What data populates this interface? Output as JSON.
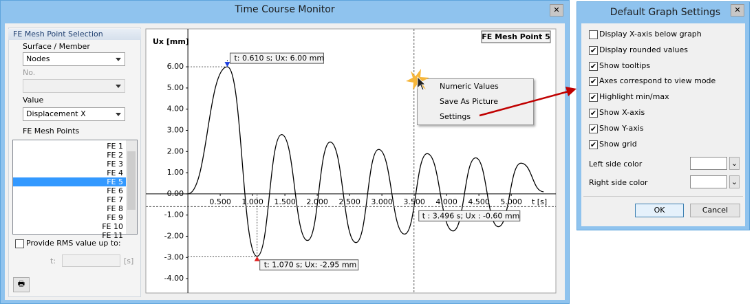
{
  "window": {
    "title": "Time Course Monitor"
  },
  "panel": {
    "title": "FE Mesh Point Selection",
    "surface_label": "Surface / Member",
    "surface_value": "Nodes",
    "no_label": "No.",
    "value_label": "Value",
    "value_value": "Displacement X",
    "points_label": "FE Mesh Points",
    "points": [
      "FE 1",
      "FE 2",
      "FE 3",
      "FE 4",
      "FE 5",
      "FE 6",
      "FE 7",
      "FE 8",
      "FE 9",
      "FE 10",
      "FE 11"
    ],
    "selected_point": 4,
    "rms_label": "Provide RMS value up to:",
    "t_label": "t:",
    "t_unit": "[s]"
  },
  "chart_data": {
    "type": "line",
    "title": "FE Mesh Point 5",
    "ylabel": "Ux [mm]",
    "xlabel": "t [s]",
    "x": [
      0,
      0.61,
      1.07,
      1.45,
      1.85,
      2.2,
      2.6,
      2.95,
      3.35,
      3.7,
      4.1,
      4.45,
      4.8,
      5.15,
      5.5
    ],
    "series": [
      {
        "color": "#000000",
        "values": [
          0,
          6.0,
          -2.95,
          2.8,
          -2.2,
          2.45,
          -2.3,
          2.1,
          -1.9,
          1.9,
          -1.75,
          1.7,
          -1.55,
          1.45,
          0.1
        ]
      }
    ],
    "xlim": [
      -0.65,
      5.69
    ],
    "ylim": [
      -4.68,
      7.79
    ],
    "xticks": [
      {
        "value": 0.5,
        "label": "0.500"
      },
      {
        "value": 1,
        "label": "1.000"
      },
      {
        "value": 1.5,
        "label": "1.500"
      },
      {
        "value": 2,
        "label": "2.000"
      },
      {
        "value": 2.5,
        "label": "2.500"
      },
      {
        "value": 3,
        "label": "3.000"
      },
      {
        "value": 3.5,
        "label": "3.500"
      },
      {
        "value": 4,
        "label": "4.000"
      },
      {
        "value": 4.5,
        "label": "4.500"
      },
      {
        "value": 5,
        "label": "5.000"
      }
    ],
    "yticks": [
      {
        "value": -4,
        "label": "-4.00"
      },
      {
        "value": -3,
        "label": "-3.00"
      },
      {
        "value": -2,
        "label": "-2.00"
      },
      {
        "value": -1,
        "label": "-1.00"
      },
      {
        "value": 0,
        "label": "0.00"
      },
      {
        "value": 1,
        "label": "1.00"
      },
      {
        "value": 2,
        "label": "2.00"
      },
      {
        "value": 3,
        "label": "3.00"
      },
      {
        "value": 4,
        "label": "4.00"
      },
      {
        "value": 5,
        "label": "5.00"
      },
      {
        "value": 6,
        "label": "6.00"
      }
    ],
    "max_marker": {
      "x": 0.61,
      "y": 6.0,
      "color": "#1a3de0",
      "label": "t: 0.610 s; Ux: 6.00 mm"
    },
    "min_marker": {
      "x": 1.07,
      "y": -2.95,
      "color": "#e02020",
      "label": "t: 1.070 s; Ux: -2.95 mm"
    },
    "crosshair": {
      "x": 3.496,
      "y": -0.6,
      "label": "t : 3.496 s; Ux : -0.60 mm"
    }
  },
  "context_menu": [
    "Numeric Values",
    "Save As Picture",
    "Settings"
  ],
  "settings_dialog": {
    "title": "Default Graph Settings",
    "options": [
      {
        "label": "Display X-axis below graph",
        "checked": false
      },
      {
        "label": "Display rounded values",
        "checked": true
      },
      {
        "label": "Show tooltips",
        "checked": true
      },
      {
        "label": "Axes correspond to view mode",
        "checked": true
      },
      {
        "label": "Highlight min/max",
        "checked": true
      },
      {
        "label": "Show X-axis",
        "checked": true
      },
      {
        "label": "Show Y-axis",
        "checked": true
      },
      {
        "label": "Show grid",
        "checked": true
      }
    ],
    "left_color_label": "Left side color",
    "right_color_label": "Right side color",
    "ok": "OK",
    "cancel": "Cancel"
  }
}
